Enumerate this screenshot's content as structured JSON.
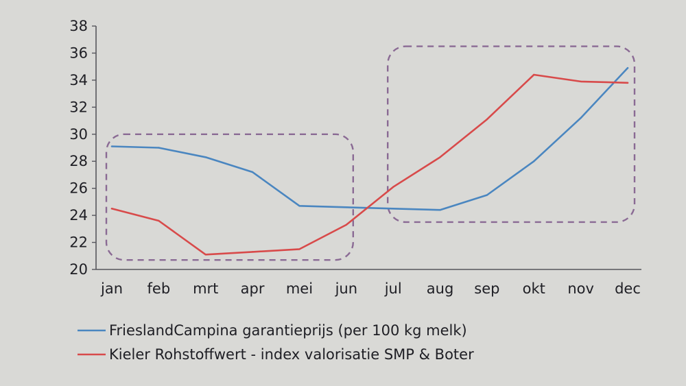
{
  "chart_data": {
    "type": "line",
    "categories": [
      "jan",
      "feb",
      "mrt",
      "apr",
      "mei",
      "jun",
      "jul",
      "aug",
      "sep",
      "okt",
      "nov",
      "dec"
    ],
    "ylim": [
      20,
      38
    ],
    "yticks": [
      20,
      22,
      24,
      26,
      28,
      30,
      32,
      34,
      36,
      38
    ],
    "grid": false,
    "legend_position": "bottom",
    "series": [
      {
        "name": "FrieslandCampina garantieprijs (per 100 kg melk)",
        "color": "#4a86c0",
        "values": [
          29.1,
          29.0,
          28.3,
          27.2,
          24.7,
          24.6,
          24.5,
          24.4,
          25.5,
          28.0,
          31.2,
          34.9
        ]
      },
      {
        "name": "Kieler Rohstoffwert - index valorisatie SMP & Boter",
        "color": "#d84a4a",
        "values": [
          24.5,
          23.6,
          21.1,
          21.3,
          21.5,
          23.3,
          26.1,
          28.3,
          31.1,
          34.4,
          33.9,
          33.8
        ]
      }
    ],
    "highlight_boxes": [
      {
        "from": "jan",
        "to": "jun",
        "y_range": [
          20.7,
          30.0
        ],
        "color": "#8a6a94"
      },
      {
        "from": "jul",
        "to": "dec",
        "y_range": [
          23.5,
          36.5
        ],
        "color": "#8a6a94"
      }
    ]
  }
}
